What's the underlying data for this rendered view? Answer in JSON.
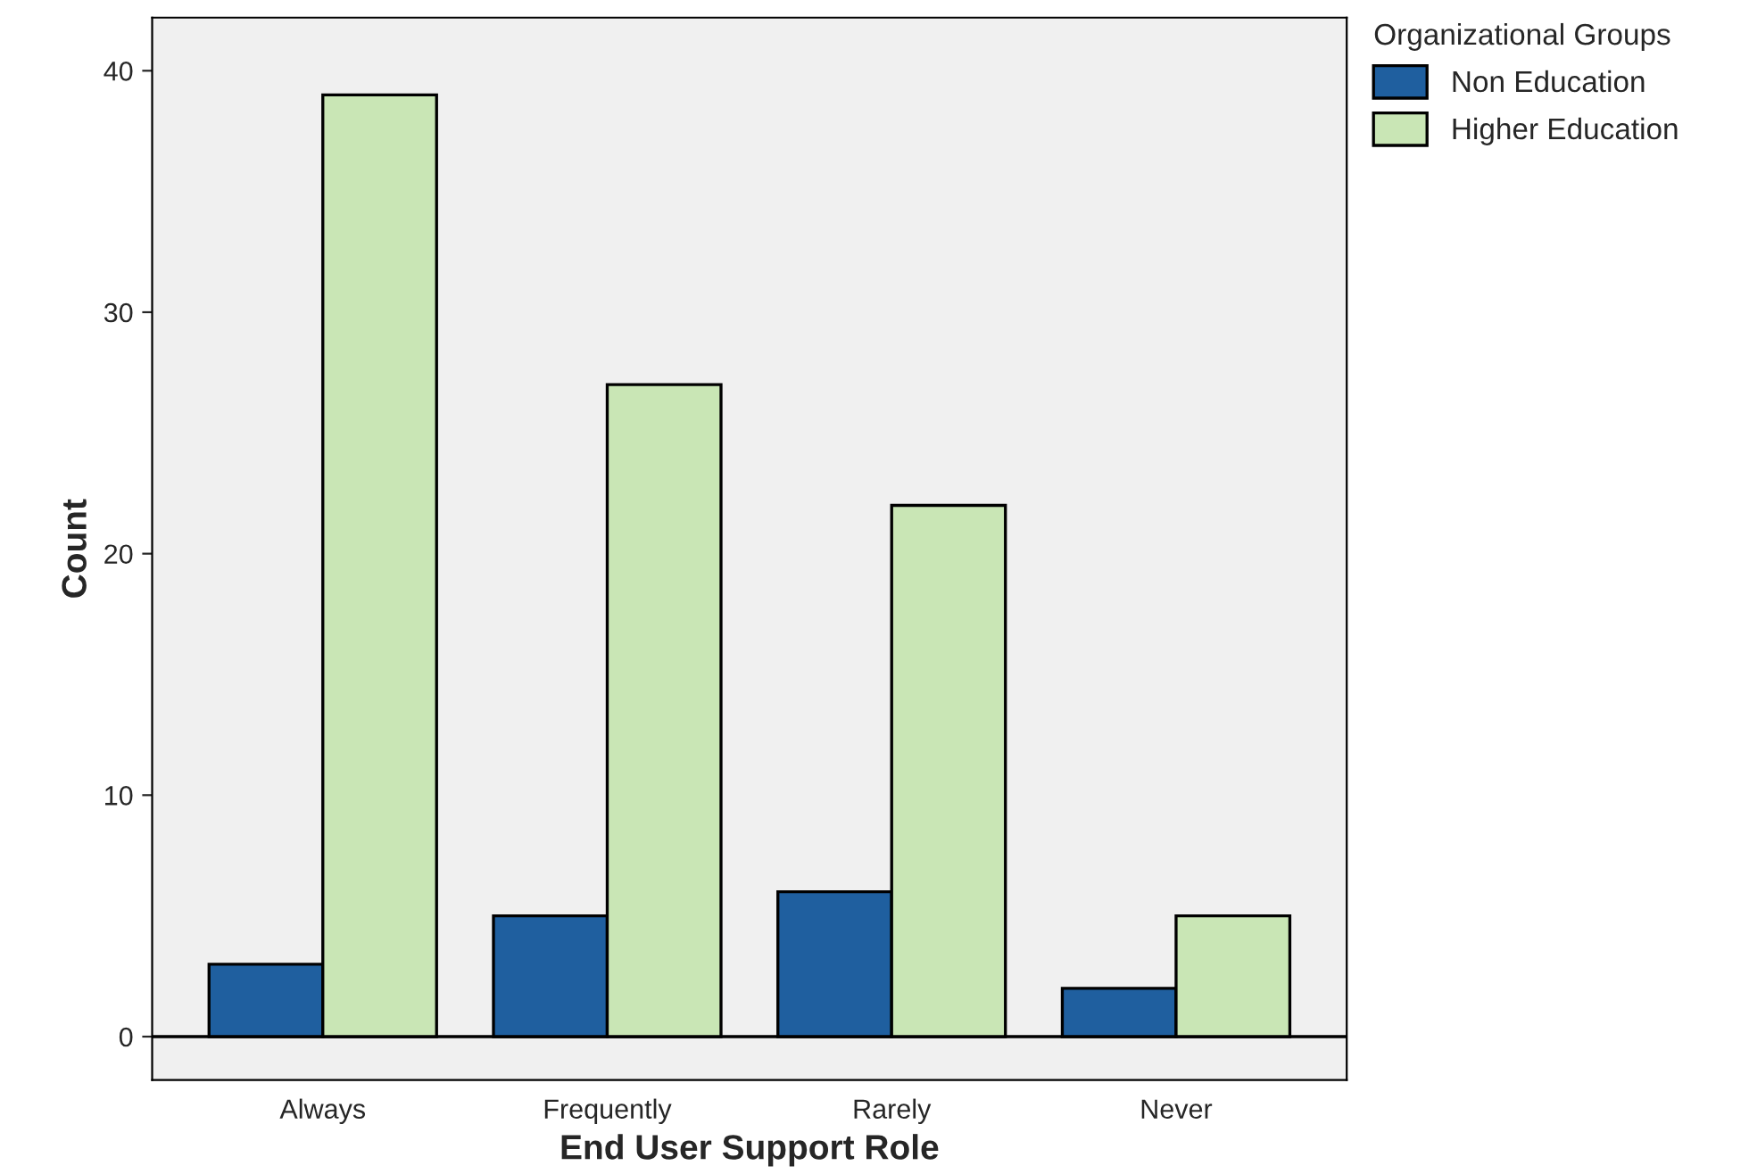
{
  "chart_data": {
    "type": "bar",
    "xlabel": "End User Support Role",
    "ylabel": "Count",
    "legend_title": "Organizational Groups",
    "categories": [
      "Always",
      "Frequently",
      "Rarely",
      "Never"
    ],
    "series": [
      {
        "name": "Non Education",
        "color": "#1f5f9f",
        "values": [
          3,
          5,
          6,
          2
        ]
      },
      {
        "name": "Higher Education",
        "color": "#c9e6b5",
        "values": [
          39,
          27,
          22,
          5
        ]
      }
    ],
    "ylim": [
      -1.8,
      42.2
    ],
    "yticks": [
      0,
      10,
      20,
      30,
      40
    ],
    "ref_lines": [
      {
        "axis": "y",
        "value": 0,
        "color": "#000000"
      }
    ],
    "grid": false,
    "legend": "top right"
  }
}
